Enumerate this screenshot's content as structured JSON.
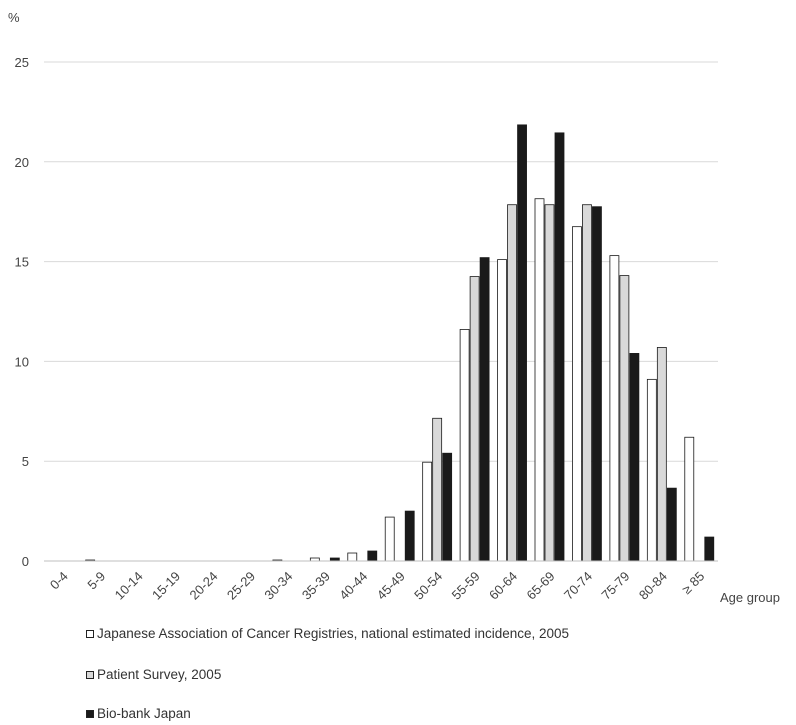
{
  "chart_data": {
    "type": "bar",
    "y_unit": "%",
    "xlabel": "Age group",
    "ylim": [
      0,
      25
    ],
    "yticks": [
      0,
      5,
      10,
      15,
      20,
      25
    ],
    "grid": true,
    "legend_position": "bottom",
    "categories": [
      "0-4",
      "5-9",
      "10-14",
      "15-19",
      "20-24",
      "25-29",
      "30-34",
      "35-39",
      "40-44",
      "45-49",
      "50-54",
      "55-59",
      "60-64",
      "65-69",
      "70-74",
      "75-79",
      "80-84",
      "≥ 85"
    ],
    "series": [
      {
        "name": "Japanese Association of Cancer Registries, national estimated incidence, 2005",
        "color": "#ffffff",
        "values": [
          0,
          0.05,
          0,
          0,
          0,
          0,
          0.05,
          0.15,
          0.4,
          2.2,
          4.95,
          11.6,
          15.1,
          18.15,
          16.75,
          15.3,
          9.1,
          6.2
        ]
      },
      {
        "name": "Patient Survey, 2005",
        "color": "#d9d9d9",
        "values": [
          0,
          0,
          0,
          0,
          0,
          0,
          0,
          0,
          0,
          0,
          7.15,
          14.25,
          17.85,
          17.85,
          17.85,
          14.3,
          10.7,
          0
        ]
      },
      {
        "name": "Bio-bank Japan",
        "color": "#1a1a1a",
        "values": [
          0,
          0,
          0,
          0,
          0,
          0,
          0,
          0.15,
          0.5,
          2.5,
          5.4,
          15.2,
          21.85,
          21.45,
          17.75,
          10.4,
          3.65,
          1.2
        ]
      }
    ]
  }
}
